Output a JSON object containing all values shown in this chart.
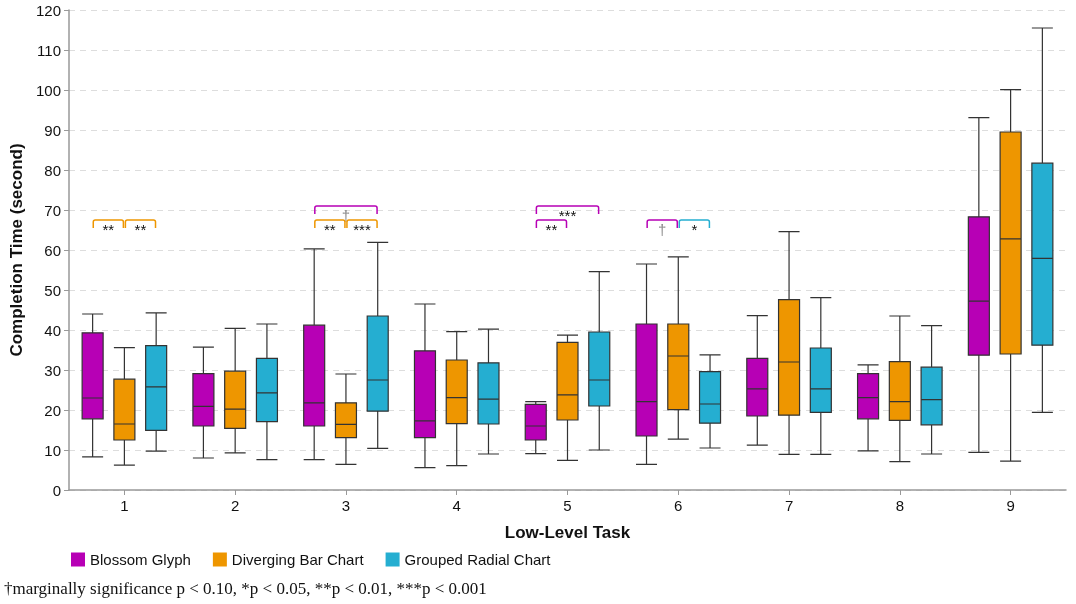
{
  "chart_data": {
    "type": "box",
    "xlabel": "Low-Level Task",
    "ylabel": "Completion Time (second)",
    "categories": [
      "1",
      "2",
      "3",
      "4",
      "5",
      "6",
      "7",
      "8",
      "9"
    ],
    "ylim": [
      0,
      120
    ],
    "yticks": [
      0,
      10,
      20,
      30,
      40,
      50,
      60,
      70,
      80,
      90,
      100,
      110,
      120
    ],
    "grid": "y",
    "legend": "bottom left",
    "series": [
      {
        "name": "Blossom Glyph",
        "color": "#b700b5",
        "boxes": [
          {
            "low": 8.3,
            "q1": 17.8,
            "median": 23,
            "q3": 39.3,
            "high": 44
          },
          {
            "low": 8,
            "q1": 16,
            "median": 20.9,
            "q3": 29.1,
            "high": 35.7
          },
          {
            "low": 7.6,
            "q1": 16,
            "median": 21.8,
            "q3": 41.2,
            "high": 60.3
          },
          {
            "low": 5.6,
            "q1": 13.1,
            "median": 17.3,
            "q3": 34.8,
            "high": 46.5
          },
          {
            "low": 9.1,
            "q1": 12.5,
            "median": 16,
            "q3": 21.4,
            "high": 22.1
          },
          {
            "low": 6.4,
            "q1": 13.5,
            "median": 22.1,
            "q3": 41.5,
            "high": 56.5
          },
          {
            "low": 11.2,
            "q1": 18.5,
            "median": 25.3,
            "q3": 32.9,
            "high": 43.6
          },
          {
            "low": 9.8,
            "q1": 17.8,
            "median": 23.1,
            "q3": 29.1,
            "high": 31.3
          },
          {
            "low": 9.4,
            "q1": 33.7,
            "median": 47.2,
            "q3": 68.3,
            "high": 93.1
          }
        ]
      },
      {
        "name": "Diverging Bar Chart",
        "color": "#ee9600",
        "boxes": [
          {
            "low": 6.2,
            "q1": 12.5,
            "median": 16.5,
            "q3": 27.7,
            "high": 35.6
          },
          {
            "low": 9.3,
            "q1": 15.4,
            "median": 20.2,
            "q3": 29.7,
            "high": 40.4
          },
          {
            "low": 6.4,
            "q1": 13.1,
            "median": 16.4,
            "q3": 21.8,
            "high": 29
          },
          {
            "low": 6.1,
            "q1": 16.6,
            "median": 23.1,
            "q3": 32.5,
            "high": 39.6
          },
          {
            "low": 7.4,
            "q1": 17.5,
            "median": 23.8,
            "q3": 36.9,
            "high": 38.7
          },
          {
            "low": 12.7,
            "q1": 20.1,
            "median": 33.5,
            "q3": 41.5,
            "high": 58.3
          },
          {
            "low": 8.9,
            "q1": 18.7,
            "median": 32,
            "q3": 47.6,
            "high": 64.6
          },
          {
            "low": 7.1,
            "q1": 17.4,
            "median": 22.1,
            "q3": 32.1,
            "high": 43.5
          },
          {
            "low": 7.2,
            "q1": 34,
            "median": 62.8,
            "q3": 89.5,
            "high": 100.1
          }
        ]
      },
      {
        "name": "Grouped Radial Chart",
        "color": "#25aed1",
        "boxes": [
          {
            "low": 9.7,
            "q1": 14.9,
            "median": 25.8,
            "q3": 36.1,
            "high": 44.3
          },
          {
            "low": 7.6,
            "q1": 17.1,
            "median": 24.3,
            "q3": 32.9,
            "high": 41.5
          },
          {
            "low": 10.4,
            "q1": 19.7,
            "median": 27.5,
            "q3": 43.5,
            "high": 61.9
          },
          {
            "low": 9,
            "q1": 16.5,
            "median": 22.7,
            "q3": 31.8,
            "high": 40.2
          },
          {
            "low": 10,
            "q1": 21,
            "median": 27.5,
            "q3": 39.5,
            "high": 54.6
          },
          {
            "low": 10.5,
            "q1": 16.7,
            "median": 21.5,
            "q3": 29.6,
            "high": 33.8
          },
          {
            "low": 8.9,
            "q1": 19.4,
            "median": 25.3,
            "q3": 35.5,
            "high": 48.1
          },
          {
            "low": 9,
            "q1": 16.3,
            "median": 22.6,
            "q3": 30.7,
            "high": 41.1
          },
          {
            "low": 19.4,
            "q1": 36.2,
            "median": 57.9,
            "q3": 81.7,
            "high": 115.5
          }
        ]
      }
    ],
    "annotations": [
      "**",
      "**",
      "†",
      "**",
      "**",
      "†",
      "*",
      "***",
      "***",
      "†marginally significance p < 0.10, *p < 0.05, **p < 0.01, ***p < 0.001"
    ]
  }
}
